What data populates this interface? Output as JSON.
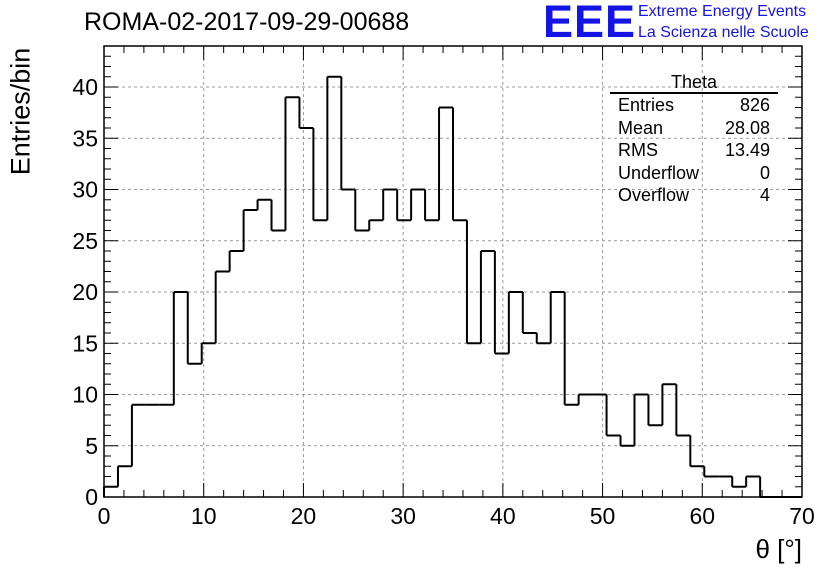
{
  "header": {
    "run_title": "ROMA-02-2017-09-29-00688",
    "logo_text": "EEE",
    "logo_line1": "Extreme Energy Events",
    "logo_line2": "La Scienza nelle Scuole"
  },
  "stats_box": {
    "title": "Theta",
    "rows": [
      {
        "label": "Entries",
        "value": "826"
      },
      {
        "label": "Mean",
        "value": "28.08"
      },
      {
        "label": "RMS",
        "value": "13.49"
      },
      {
        "label": "Underflow",
        "value": "0"
      },
      {
        "label": "Overflow",
        "value": "4"
      }
    ]
  },
  "colors": {
    "line": "#000000",
    "grid": "#999999",
    "logo": "#1414e6"
  },
  "chart_data": {
    "type": "histogram",
    "title": "ROMA-02-2017-09-29-00688",
    "xlabel": "θ [°]",
    "ylabel": "Entries/bin",
    "xlim": [
      0,
      70
    ],
    "ylim": [
      0,
      44
    ],
    "bin_width": 1.4,
    "bin_start": 0,
    "grid": true,
    "x_ticks": [
      0,
      10,
      20,
      30,
      40,
      50,
      60,
      70
    ],
    "y_ticks": [
      0,
      5,
      10,
      15,
      20,
      25,
      30,
      35,
      40
    ],
    "values": [
      1,
      3,
      9,
      9,
      9,
      20,
      13,
      15,
      22,
      24,
      28,
      29,
      26,
      39,
      36,
      27,
      41,
      30,
      26,
      27,
      30,
      27,
      30,
      27,
      38,
      27,
      15,
      24,
      14,
      20,
      16,
      15,
      20,
      9,
      10,
      10,
      6,
      5,
      10,
      7,
      11,
      6,
      3,
      2,
      2,
      1,
      2,
      0,
      0,
      0
    ]
  }
}
